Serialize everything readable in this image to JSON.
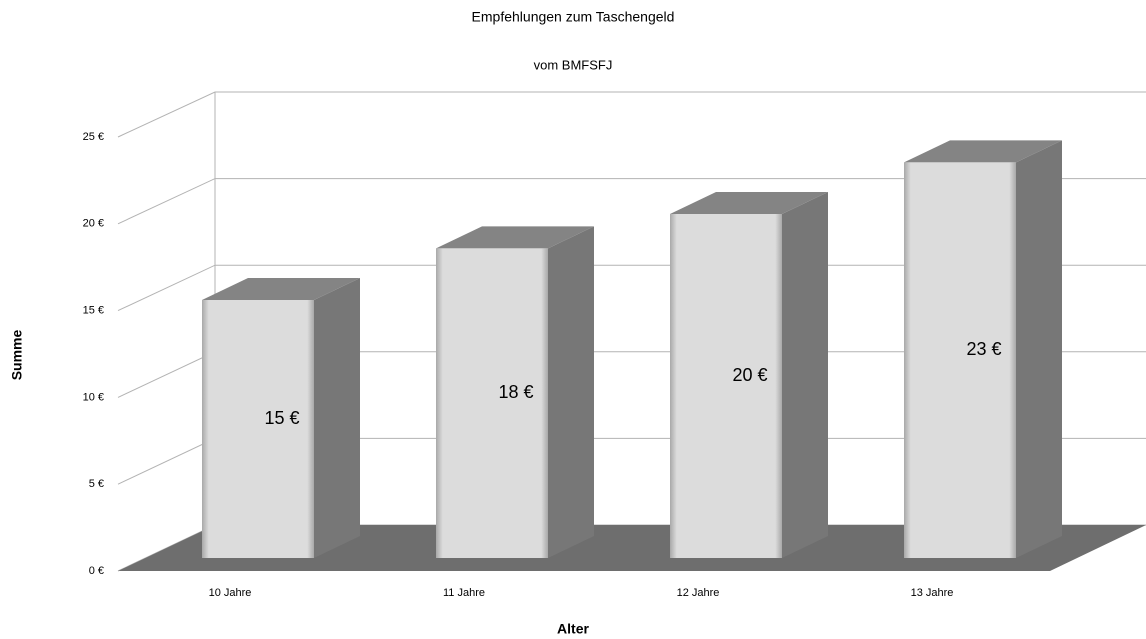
{
  "chart_data": {
    "type": "bar3d",
    "title": "Empfehlungen zum Taschengeld",
    "subtitle": "vom BMFSFJ",
    "x_label": "Alter",
    "y_label": "Summe",
    "categories": [
      "10 Jahre",
      "11 Jahre",
      "12 Jahre",
      "13 Jahre"
    ],
    "values": [
      15,
      18,
      20,
      23
    ],
    "value_labels": [
      "15 €",
      "18 €",
      "20 €",
      "23 €"
    ],
    "color": "#d9d9d9",
    "ylim": [
      0,
      25
    ],
    "yticks": [
      {
        "value": 0,
        "label": "0 €"
      },
      {
        "value": 5,
        "label": "5 €"
      },
      {
        "value": 10,
        "label": "10 €"
      },
      {
        "value": 15,
        "label": "15 €"
      },
      {
        "value": 20,
        "label": "20 €"
      },
      {
        "value": 25,
        "label": "25 €"
      }
    ],
    "grid": true
  }
}
